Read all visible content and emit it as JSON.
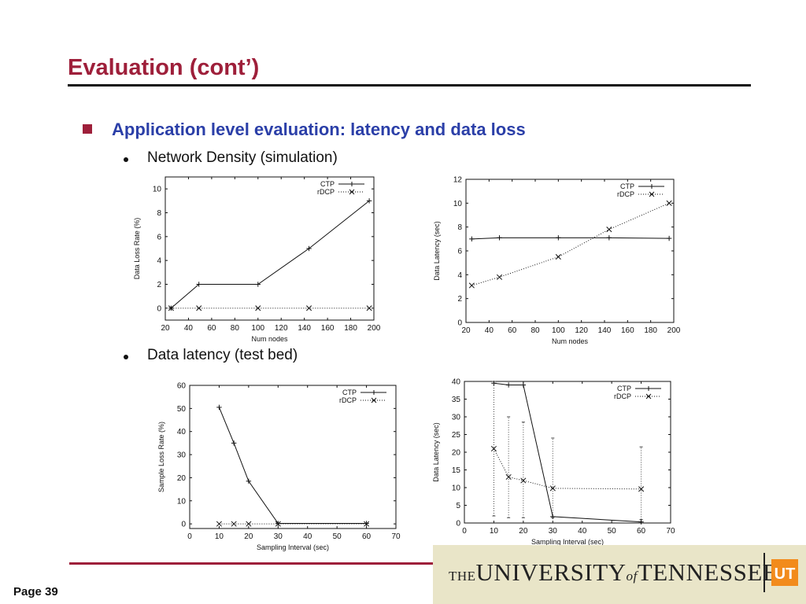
{
  "slide": {
    "title": "Evaluation (cont’)",
    "bullet": "Application level evaluation: latency and data loss",
    "sub1": "Network Density (simulation)",
    "sub2": "Data latency (test bed)",
    "page": "Page 39",
    "logo": {
      "the": "THE",
      "university": "UNIVERSITY",
      "of": "of",
      "tennessee": "TENNESSEE",
      "mark": "UT"
    },
    "colors": {
      "title": "#9e1f3a",
      "bullet_text": "#2b3fa8",
      "rule": "#9e1f3a",
      "logo_bg": "#e9e5c8",
      "logo_mark": "#f28b1c"
    }
  },
  "chart_data": [
    {
      "type": "line",
      "xlabel": "Num nodes",
      "ylabel": "Data Loss Rate (%)",
      "xlim": [
        20,
        200
      ],
      "ylim": [
        -1,
        11
      ],
      "xticks": [
        20,
        40,
        60,
        80,
        100,
        120,
        140,
        160,
        180,
        200
      ],
      "yticks": [
        0,
        2,
        4,
        6,
        8,
        10
      ],
      "legend": "top-right",
      "series": [
        {
          "name": "CTP",
          "marker": "plus",
          "style": "solid",
          "x": [
            25,
            49,
            100,
            144,
            196
          ],
          "y": [
            0,
            2,
            2,
            5,
            9
          ]
        },
        {
          "name": "rDCP",
          "marker": "x",
          "style": "dotted",
          "x": [
            25,
            49,
            100,
            144,
            196
          ],
          "y": [
            0,
            0,
            0,
            0,
            0
          ]
        }
      ]
    },
    {
      "type": "line",
      "xlabel": "Num nodes",
      "ylabel": "Data Latency (sec)",
      "xlim": [
        20,
        200
      ],
      "ylim": [
        0,
        12
      ],
      "xticks": [
        20,
        40,
        60,
        80,
        100,
        120,
        140,
        160,
        180,
        200
      ],
      "yticks": [
        0,
        2,
        4,
        6,
        8,
        10,
        12
      ],
      "legend": "top-right",
      "series": [
        {
          "name": "CTP",
          "marker": "plus",
          "style": "solid",
          "x": [
            25,
            49,
            100,
            144,
            196
          ],
          "y": [
            7.0,
            7.1,
            7.1,
            7.1,
            7.05
          ]
        },
        {
          "name": "rDCP",
          "marker": "x",
          "style": "dotted",
          "x": [
            25,
            49,
            100,
            144,
            196
          ],
          "y": [
            3.1,
            3.8,
            5.5,
            7.8,
            10.0
          ]
        }
      ]
    },
    {
      "type": "line",
      "xlabel": "Sampling Interval (sec)",
      "ylabel": "Sample Loss Rate (%)",
      "xlim": [
        0,
        70
      ],
      "ylim": [
        -2,
        60
      ],
      "xticks": [
        0,
        10,
        20,
        30,
        40,
        50,
        60,
        70
      ],
      "yticks": [
        0,
        10,
        20,
        30,
        40,
        50,
        60
      ],
      "legend": "top-right",
      "series": [
        {
          "name": "CTP",
          "marker": "plus",
          "style": "solid",
          "x": [
            10,
            15,
            20,
            30,
            60
          ],
          "y": [
            50.5,
            35,
            18.5,
            0.2,
            0.2
          ]
        },
        {
          "name": "rDCP",
          "marker": "x",
          "style": "dotted",
          "x": [
            10,
            15,
            20,
            30,
            60
          ],
          "y": [
            0,
            0,
            0,
            0,
            0
          ]
        }
      ]
    },
    {
      "type": "line",
      "xlabel": "Sampling Interval (sec)",
      "ylabel": "Data Latency (sec)",
      "xlim": [
        0,
        70
      ],
      "ylim": [
        0,
        40
      ],
      "xticks": [
        0,
        10,
        20,
        30,
        40,
        50,
        60,
        70
      ],
      "yticks": [
        0,
        5,
        10,
        15,
        20,
        25,
        30,
        35,
        40
      ],
      "legend": "top-right",
      "series": [
        {
          "name": "CTP",
          "marker": "plus",
          "style": "solid",
          "x": [
            10,
            15,
            20,
            30,
            60
          ],
          "y": [
            39.5,
            39,
            39,
            1.8,
            0.3
          ]
        },
        {
          "name": "rDCP",
          "marker": "x",
          "style": "dotted",
          "x": [
            10,
            15,
            20,
            30,
            60
          ],
          "y": [
            21,
            13,
            12,
            9.8,
            9.6
          ],
          "err_low": [
            2,
            1.5,
            1.5,
            1.5,
            1
          ],
          "err_high": [
            40,
            30,
            28.5,
            24,
            21.5
          ]
        }
      ]
    }
  ]
}
